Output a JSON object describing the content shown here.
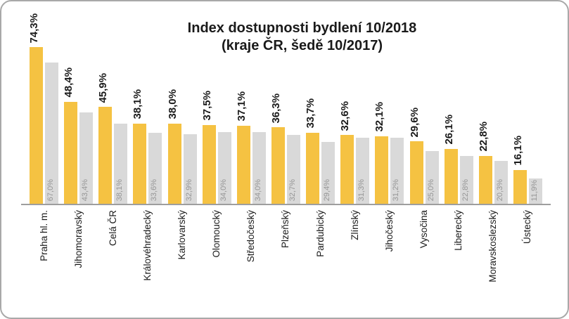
{
  "chart_data": {
    "type": "bar",
    "title_line1": "Index dostupnosti bydlení 10/2018",
    "title_line2": "(kraje ČR, šedě 10/2017)",
    "categories": [
      "Praha hl. m.",
      "Jihomoravský",
      "Celá ČR",
      "Královéhradecký",
      "Karlovarský",
      "Olomoucký",
      "Středočeský",
      "Plzeňský",
      "Pardubický",
      "Zlínský",
      "Jihočeský",
      "Vysočina",
      "Liberecký",
      "Moravskoslezský",
      "Ústecký"
    ],
    "series": [
      {
        "name": "10/2018",
        "color": "#F5C242",
        "values": [
          74.3,
          48.4,
          45.9,
          38.1,
          38.0,
          37.5,
          37.1,
          36.3,
          33.7,
          32.6,
          32.1,
          29.6,
          26.1,
          22.8,
          16.1
        ],
        "labels": [
          "74,3%",
          "48,4%",
          "45,9%",
          "38,1%",
          "38,0%",
          "37,5%",
          "37,1%",
          "36,3%",
          "33,7%",
          "32,6%",
          "32,1%",
          "29,6%",
          "26,1%",
          "22,8%",
          "16,1%"
        ]
      },
      {
        "name": "10/2017",
        "color": "#D9D9D9",
        "values": [
          67.0,
          43.4,
          38.1,
          33.6,
          32.9,
          34.0,
          34.0,
          32.7,
          29.4,
          31.3,
          31.2,
          25.0,
          22.8,
          20.3,
          11.9
        ],
        "labels": [
          "67,0%",
          "43,4%",
          "38,1%",
          "33,6%",
          "32,9%",
          "34,0%",
          "34,0%",
          "32,7%",
          "29,4%",
          "31,3%",
          "31,2%",
          "25,0%",
          "22,8%",
          "20,3%",
          "11,9%"
        ]
      }
    ],
    "ylim": [
      0,
      96
    ],
    "y_axis_visible": false,
    "grid": false,
    "legend": "none (series identified in title text)",
    "value_label_color_2018": "#1a1a1a",
    "value_label_color_2017": "#969696"
  }
}
